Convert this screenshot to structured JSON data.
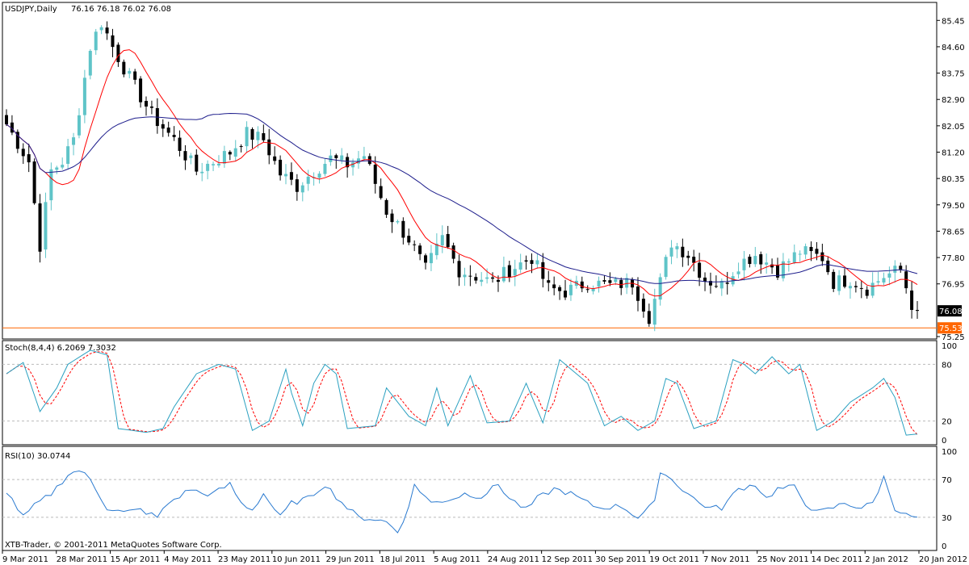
{
  "chart_data": [
    {
      "type": "candlestick",
      "symbol_label": "USDJPY,Daily",
      "ohlc_label": "76.16 76.18 76.02 76.08",
      "ylim": [
        75.25,
        85.9
      ],
      "y_ticks": [
        "85.45",
        "84.60",
        "83.75",
        "82.90",
        "82.05",
        "81.20",
        "80.35",
        "79.50",
        "78.65",
        "77.80",
        "76.95",
        "76.08",
        "75.25"
      ],
      "current_price": 76.08,
      "current_price_label": "76.08",
      "horizontal_line": 75.53,
      "horizontal_line_label": "75.53",
      "horizontal_line_color": "#ff6600",
      "up_color": "#5fc4c8",
      "down_color": "#000000",
      "moving_averages": [
        {
          "color": "#ff0000",
          "role": "fast"
        },
        {
          "color": "#1e1e8c",
          "role": "slow"
        }
      ],
      "close_path": [
        [
          0,
          82.1
        ],
        [
          4,
          80.9
        ],
        [
          6,
          78.2
        ],
        [
          8,
          80.6
        ],
        [
          10,
          80.9
        ],
        [
          12,
          81.6
        ],
        [
          15,
          84.6
        ],
        [
          17,
          85.4
        ],
        [
          19,
          84.6
        ],
        [
          22,
          83.6
        ],
        [
          26,
          82.4
        ],
        [
          30,
          81.6
        ],
        [
          34,
          80.6
        ],
        [
          37,
          80.9
        ],
        [
          40,
          81.2
        ],
        [
          43,
          81.8
        ],
        [
          46,
          81.6
        ],
        [
          49,
          80.5
        ],
        [
          52,
          80.1
        ],
        [
          55,
          80.6
        ],
        [
          58,
          81.0
        ],
        [
          61,
          80.8
        ],
        [
          64,
          81.1
        ],
        [
          68,
          79.3
        ],
        [
          72,
          78.4
        ],
        [
          75,
          77.4
        ],
        [
          78,
          78.4
        ],
        [
          81,
          77.4
        ],
        [
          84,
          77.2
        ],
        [
          87,
          77.0
        ],
        [
          90,
          77.4
        ],
        [
          94,
          77.8
        ],
        [
          97,
          76.8
        ],
        [
          100,
          76.7
        ],
        [
          104,
          77.0
        ],
        [
          108,
          76.9
        ],
        [
          112,
          77.0
        ],
        [
          115,
          75.9
        ],
        [
          117,
          77.0
        ],
        [
          119,
          78.3
        ],
        [
          122,
          77.9
        ],
        [
          125,
          77.1
        ],
        [
          128,
          76.9
        ],
        [
          131,
          77.6
        ],
        [
          134,
          77.9
        ],
        [
          138,
          77.4
        ],
        [
          142,
          78.0
        ],
        [
          146,
          77.8
        ],
        [
          148,
          77.0
        ],
        [
          151,
          77.1
        ],
        [
          154,
          76.8
        ],
        [
          157,
          77.2
        ],
        [
          160,
          77.4
        ],
        [
          162,
          76.3
        ],
        [
          163,
          76.08
        ]
      ],
      "stoch_label": "Stoch(8,4,4) 6.2069 7.3032",
      "stoch_ylim": [
        0,
        100
      ],
      "stoch_ticks": [
        "100",
        "80",
        "20",
        "0"
      ],
      "stoch_levels": [
        80,
        20
      ],
      "stoch_main_color": "#2aa0c0",
      "stoch_signal_color": "#ff0000",
      "stoch_path": [
        [
          0,
          70
        ],
        [
          3,
          82
        ],
        [
          6,
          30
        ],
        [
          9,
          55
        ],
        [
          11,
          80
        ],
        [
          15,
          95
        ],
        [
          18,
          90
        ],
        [
          20,
          12
        ],
        [
          25,
          8
        ],
        [
          28,
          12
        ],
        [
          30,
          35
        ],
        [
          34,
          70
        ],
        [
          38,
          80
        ],
        [
          41,
          75
        ],
        [
          44,
          10
        ],
        [
          47,
          20
        ],
        [
          50,
          75
        ],
        [
          51,
          50
        ],
        [
          53,
          15
        ],
        [
          55,
          60
        ],
        [
          57,
          80
        ],
        [
          59,
          70
        ],
        [
          61,
          12
        ],
        [
          66,
          15
        ],
        [
          68,
          55
        ],
        [
          72,
          25
        ],
        [
          75,
          15
        ],
        [
          77,
          55
        ],
        [
          79,
          15
        ],
        [
          83,
          68
        ],
        [
          86,
          18
        ],
        [
          90,
          20
        ],
        [
          93,
          60
        ],
        [
          96,
          18
        ],
        [
          99,
          85
        ],
        [
          102,
          70
        ],
        [
          104,
          60
        ],
        [
          107,
          15
        ],
        [
          110,
          25
        ],
        [
          113,
          10
        ],
        [
          116,
          20
        ],
        [
          118,
          65
        ],
        [
          120,
          60
        ],
        [
          123,
          12
        ],
        [
          127,
          20
        ],
        [
          130,
          85
        ],
        [
          132,
          80
        ],
        [
          134,
          70
        ],
        [
          137,
          88
        ],
        [
          140,
          70
        ],
        [
          142,
          80
        ],
        [
          145,
          10
        ],
        [
          148,
          20
        ],
        [
          151,
          40
        ],
        [
          155,
          55
        ],
        [
          157,
          65
        ],
        [
          159,
          45
        ],
        [
          161,
          5
        ],
        [
          163,
          6.21
        ]
      ],
      "rsi_label": "RSI(10) 30.0744",
      "rsi_ylim": [
        0,
        100
      ],
      "rsi_ticks": [
        "100",
        "70",
        "30",
        "0"
      ],
      "rsi_levels": [
        70,
        30
      ],
      "rsi_color": "#2a7ad0",
      "rsi_path": [
        [
          0,
          58
        ],
        [
          3,
          30
        ],
        [
          5,
          42
        ],
        [
          8,
          55
        ],
        [
          11,
          75
        ],
        [
          13,
          80
        ],
        [
          15,
          70
        ],
        [
          18,
          40
        ],
        [
          21,
          35
        ],
        [
          24,
          38
        ],
        [
          27,
          30
        ],
        [
          29,
          45
        ],
        [
          33,
          60
        ],
        [
          35,
          55
        ],
        [
          37,
          55
        ],
        [
          40,
          65
        ],
        [
          42,
          45
        ],
        [
          44,
          38
        ],
        [
          46,
          55
        ],
        [
          49,
          30
        ],
        [
          51,
          45
        ],
        [
          54,
          50
        ],
        [
          57,
          65
        ],
        [
          59,
          52
        ],
        [
          61,
          40
        ],
        [
          63,
          30
        ],
        [
          66,
          28
        ],
        [
          68,
          25
        ],
        [
          70,
          15
        ],
        [
          72,
          40
        ],
        [
          73,
          65
        ],
        [
          76,
          45
        ],
        [
          80,
          50
        ],
        [
          82,
          55
        ],
        [
          85,
          52
        ],
        [
          88,
          65
        ],
        [
          90,
          50
        ],
        [
          93,
          38
        ],
        [
          95,
          50
        ],
        [
          98,
          60
        ],
        [
          101,
          55
        ],
        [
          104,
          45
        ],
        [
          106,
          40
        ],
        [
          110,
          42
        ],
        [
          113,
          30
        ],
        [
          116,
          45
        ],
        [
          117,
          80
        ],
        [
          119,
          70
        ],
        [
          121,
          60
        ],
        [
          124,
          45
        ],
        [
          126,
          40
        ],
        [
          128,
          40
        ],
        [
          131,
          60
        ],
        [
          134,
          65
        ],
        [
          136,
          50
        ],
        [
          138,
          60
        ],
        [
          141,
          62
        ],
        [
          143,
          45
        ],
        [
          145,
          35
        ],
        [
          147,
          38
        ],
        [
          150,
          45
        ],
        [
          153,
          40
        ],
        [
          155,
          45
        ],
        [
          157,
          72
        ],
        [
          159,
          40
        ],
        [
          161,
          32
        ],
        [
          163,
          30.07
        ]
      ],
      "x_tick_labels": [
        "9 Mar 2011",
        "28 Mar 2011",
        "15 Apr 2011",
        "4 May 2011",
        "23 May 2011",
        "10 Jun 2011",
        "29 Jun 2011",
        "18 Jul 2011",
        "5 Aug 2011",
        "24 Aug 2011",
        "12 Sep 2011",
        "30 Sep 2011",
        "19 Oct 2011",
        "7 Nov 2011",
        "25 Nov 2011",
        "14 Dec 2011",
        "2 Jan 2012",
        "20 Jan 2012"
      ],
      "bar_count": 164
    }
  ],
  "footer": {
    "copyright": "XTB-Trader, © 2001-2011 MetaQuotes Software Corp."
  }
}
